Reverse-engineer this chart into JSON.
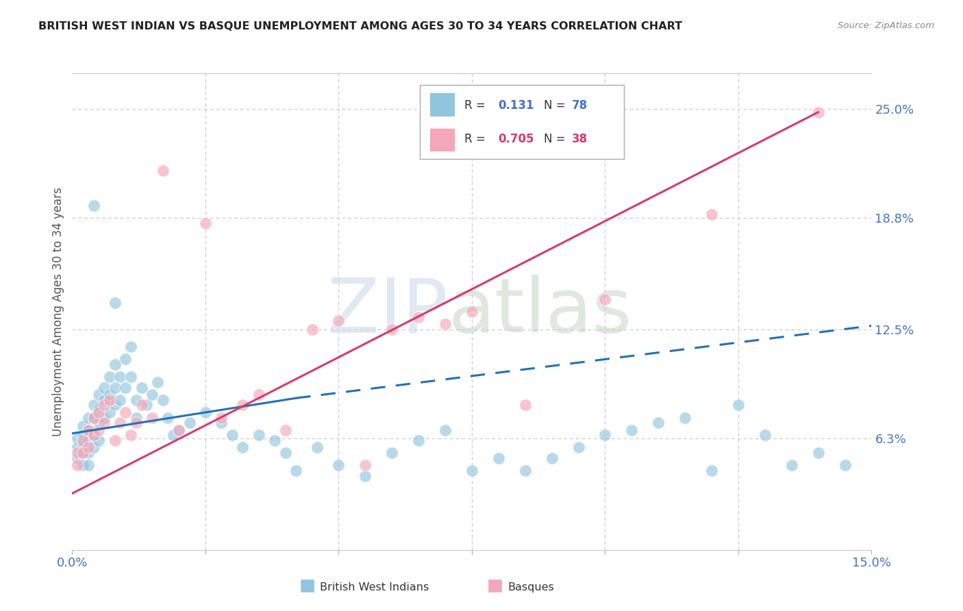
{
  "title": "BRITISH WEST INDIAN VS BASQUE UNEMPLOYMENT AMONG AGES 30 TO 34 YEARS CORRELATION CHART",
  "source": "Source: ZipAtlas.com",
  "ylabel": "Unemployment Among Ages 30 to 34 years",
  "xlim": [
    0.0,
    0.15
  ],
  "ylim": [
    0.0,
    0.27
  ],
  "blue_color": "#92c5de",
  "pink_color": "#f4a7b9",
  "line_blue": "#2171b5",
  "line_pink": "#d63a6e",
  "blue_scatter_x": [
    0.001,
    0.001,
    0.001,
    0.002,
    0.002,
    0.002,
    0.002,
    0.002,
    0.003,
    0.003,
    0.003,
    0.003,
    0.003,
    0.004,
    0.004,
    0.004,
    0.004,
    0.005,
    0.005,
    0.005,
    0.005,
    0.006,
    0.006,
    0.006,
    0.007,
    0.007,
    0.007,
    0.008,
    0.008,
    0.008,
    0.009,
    0.009,
    0.01,
    0.01,
    0.011,
    0.011,
    0.012,
    0.012,
    0.013,
    0.014,
    0.015,
    0.016,
    0.017,
    0.018,
    0.019,
    0.02,
    0.022,
    0.025,
    0.028,
    0.03,
    0.032,
    0.035,
    0.038,
    0.04,
    0.042,
    0.046,
    0.05,
    0.055,
    0.06,
    0.065,
    0.07,
    0.075,
    0.08,
    0.085,
    0.09,
    0.095,
    0.1,
    0.105,
    0.11,
    0.115,
    0.12,
    0.125,
    0.13,
    0.135,
    0.14,
    0.145,
    0.008,
    0.004
  ],
  "blue_scatter_y": [
    0.063,
    0.058,
    0.052,
    0.07,
    0.065,
    0.06,
    0.055,
    0.048,
    0.075,
    0.068,
    0.062,
    0.055,
    0.048,
    0.082,
    0.075,
    0.065,
    0.058,
    0.088,
    0.08,
    0.072,
    0.062,
    0.092,
    0.085,
    0.075,
    0.098,
    0.088,
    0.078,
    0.105,
    0.092,
    0.082,
    0.098,
    0.085,
    0.108,
    0.092,
    0.115,
    0.098,
    0.085,
    0.075,
    0.092,
    0.082,
    0.088,
    0.095,
    0.085,
    0.075,
    0.065,
    0.068,
    0.072,
    0.078,
    0.072,
    0.065,
    0.058,
    0.065,
    0.062,
    0.055,
    0.045,
    0.058,
    0.048,
    0.042,
    0.055,
    0.062,
    0.068,
    0.045,
    0.052,
    0.045,
    0.052,
    0.058,
    0.065,
    0.068,
    0.072,
    0.075,
    0.045,
    0.082,
    0.065,
    0.048,
    0.055,
    0.048,
    0.14,
    0.195
  ],
  "pink_scatter_x": [
    0.001,
    0.001,
    0.002,
    0.002,
    0.003,
    0.003,
    0.004,
    0.004,
    0.005,
    0.005,
    0.006,
    0.006,
    0.007,
    0.008,
    0.009,
    0.01,
    0.011,
    0.012,
    0.013,
    0.015,
    0.017,
    0.02,
    0.025,
    0.028,
    0.032,
    0.035,
    0.04,
    0.045,
    0.05,
    0.055,
    0.06,
    0.065,
    0.07,
    0.075,
    0.085,
    0.1,
    0.12,
    0.14
  ],
  "pink_scatter_y": [
    0.055,
    0.048,
    0.062,
    0.055,
    0.068,
    0.058,
    0.075,
    0.065,
    0.078,
    0.068,
    0.082,
    0.072,
    0.085,
    0.062,
    0.072,
    0.078,
    0.065,
    0.072,
    0.082,
    0.075,
    0.215,
    0.068,
    0.185,
    0.075,
    0.082,
    0.088,
    0.068,
    0.125,
    0.13,
    0.048,
    0.125,
    0.132,
    0.128,
    0.135,
    0.082,
    0.142,
    0.19,
    0.248
  ],
  "blue_line_x0": 0.0,
  "blue_line_y0": 0.066,
  "blue_line_x_solid_end": 0.042,
  "blue_line_y_solid_end": 0.086,
  "blue_line_x1": 0.15,
  "blue_line_y1": 0.127,
  "pink_line_x0": 0.0,
  "pink_line_y0": 0.032,
  "pink_line_x1": 0.14,
  "pink_line_y1": 0.248
}
